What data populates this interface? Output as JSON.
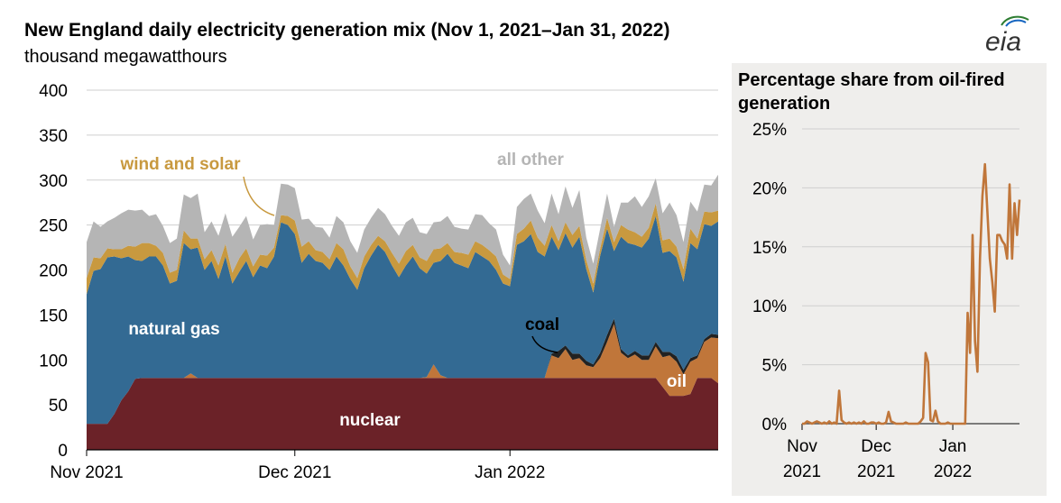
{
  "header": {
    "title": "New England daily electricity generation mix (Nov 1, 2021–Jan 31, 2022)",
    "subtitle": "thousand megawatthours",
    "logo_text": "eia"
  },
  "chart_data": [
    {
      "type": "area",
      "title": "New England daily electricity generation mix (Nov 1, 2021–Jan 31, 2022)",
      "ylabel": "thousand megawatthours",
      "ylim": [
        0,
        400
      ],
      "yticks": [
        "0",
        "50",
        "100",
        "150",
        "200",
        "250",
        "300",
        "350",
        "400"
      ],
      "xticks": [
        {
          "day": 0,
          "label": "Nov 2021"
        },
        {
          "day": 30,
          "label": "Dec 2021"
        },
        {
          "day": 61,
          "label": "Jan 2022"
        }
      ],
      "stacked": true,
      "series": [
        {
          "name": "nuclear",
          "color": "#6b2228",
          "label": "nuclear",
          "label_color": "#ffffff",
          "values": [
            29,
            29,
            29,
            29,
            40,
            55,
            65,
            79,
            80,
            80,
            80,
            80,
            80,
            80,
            80,
            80,
            80,
            80,
            80,
            80,
            80,
            80,
            80,
            80,
            80,
            80,
            80,
            80,
            80,
            80,
            80,
            80,
            80,
            80,
            80,
            80,
            80,
            80,
            80,
            80,
            80,
            80,
            80,
            80,
            80,
            80,
            80,
            80,
            80,
            80,
            80,
            80,
            80,
            80,
            80,
            80,
            80,
            80,
            80,
            80,
            80,
            80,
            80,
            80,
            80,
            80,
            80,
            80,
            80,
            80,
            80,
            80,
            80,
            80,
            80,
            80,
            80,
            80,
            80,
            80,
            80,
            80,
            80,
            70,
            60,
            60,
            60,
            62,
            80,
            80,
            80,
            74
          ]
        },
        {
          "name": "oil",
          "color": "#c0763a",
          "label": "oil",
          "label_color": "#ffffff",
          "values": [
            0,
            0,
            0,
            0,
            0,
            0,
            0,
            0,
            0,
            0,
            0,
            0,
            0,
            0,
            0,
            5,
            0,
            0,
            0,
            0,
            0,
            0,
            0,
            0,
            0,
            0,
            0,
            0,
            0,
            0,
            0,
            0,
            0,
            0,
            0,
            0,
            0,
            0,
            0,
            0,
            0,
            0,
            0,
            0,
            0,
            0,
            0,
            0,
            0,
            1,
            15,
            3,
            0,
            0,
            0,
            0,
            0,
            0,
            0,
            0,
            0,
            0,
            0,
            0,
            0,
            0,
            0,
            25,
            22,
            32,
            20,
            22,
            14,
            12,
            22,
            40,
            60,
            28,
            22,
            26,
            20,
            20,
            35,
            33,
            45,
            38,
            24,
            36,
            22,
            40,
            45,
            50
          ]
        },
        {
          "name": "coal",
          "color": "#222222",
          "label": "coal",
          "label_color": "#000000",
          "values": [
            0,
            0,
            0,
            0,
            0,
            0,
            0,
            0,
            0,
            0,
            0,
            0,
            0,
            0,
            0,
            0,
            0,
            0,
            0,
            0,
            0,
            0,
            0,
            0,
            0,
            0,
            0,
            0,
            0,
            0,
            0,
            0,
            0,
            0,
            0,
            0,
            0,
            0,
            0,
            0,
            0,
            0,
            0,
            0,
            0,
            0,
            0,
            0,
            0,
            0,
            0,
            0,
            0,
            0,
            0,
            0,
            0,
            0,
            0,
            0,
            0,
            0,
            0,
            0,
            0,
            0,
            0,
            2,
            8,
            4,
            7,
            5,
            5,
            3,
            6,
            8,
            6,
            4,
            3,
            4,
            5,
            5,
            5,
            6,
            4,
            6,
            5,
            4,
            3,
            3,
            4,
            4
          ]
        },
        {
          "name": "natural gas",
          "color": "#336a93",
          "label": "natural gas",
          "label_color": "#ffffff",
          "values": [
            144,
            170,
            172,
            185,
            175,
            158,
            150,
            132,
            130,
            135,
            135,
            125,
            105,
            108,
            150,
            138,
            145,
            120,
            130,
            110,
            135,
            105,
            118,
            130,
            112,
            125,
            122,
            135,
            173,
            170,
            160,
            128,
            138,
            130,
            128,
            120,
            135,
            125,
            110,
            98,
            122,
            136,
            148,
            140,
            125,
            112,
            125,
            135,
            122,
            115,
            113,
            127,
            138,
            128,
            125,
            122,
            140,
            135,
            130,
            120,
            105,
            102,
            148,
            152,
            160,
            140,
            135,
            130,
            112,
            125,
            118,
            130,
            102,
            80,
            108,
            118,
            75,
            125,
            125,
            118,
            120,
            130,
            140,
            110,
            112,
            110,
            98,
            128,
            118,
            128,
            120,
            126
          ]
        },
        {
          "name": "wind and solar",
          "color": "#c8993f",
          "label": "wind and solar",
          "label_color": "#c8993f",
          "values": [
            18,
            15,
            12,
            10,
            8,
            10,
            12,
            15,
            20,
            15,
            12,
            14,
            12,
            12,
            14,
            12,
            10,
            12,
            12,
            15,
            14,
            12,
            15,
            14,
            12,
            12,
            14,
            10,
            8,
            10,
            15,
            18,
            14,
            12,
            12,
            12,
            15,
            18,
            14,
            13,
            13,
            12,
            10,
            12,
            14,
            15,
            16,
            13,
            12,
            14,
            15,
            14,
            12,
            12,
            14,
            15,
            12,
            13,
            12,
            15,
            10,
            8,
            12,
            14,
            15,
            16,
            12,
            13,
            10,
            12,
            14,
            12,
            10,
            10,
            8,
            12,
            10,
            13,
            15,
            14,
            12,
            12,
            14,
            14,
            14,
            12,
            14,
            16,
            12,
            14,
            15,
            12
          ]
        },
        {
          "name": "all other",
          "color": "#b5b5b5",
          "label": "all other",
          "label_color": "#b5b5b5",
          "values": [
            40,
            40,
            35,
            30,
            35,
            40,
            40,
            40,
            37,
            30,
            35,
            30,
            33,
            35,
            40,
            45,
            50,
            30,
            32,
            33,
            34,
            40,
            35,
            36,
            30,
            33,
            35,
            25,
            35,
            35,
            36,
            30,
            25,
            26,
            27,
            24,
            30,
            30,
            28,
            28,
            30,
            30,
            31,
            30,
            30,
            31,
            32,
            30,
            28,
            30,
            30,
            30,
            30,
            28,
            27,
            28,
            30,
            33,
            30,
            30,
            22,
            15,
            30,
            33,
            30,
            30,
            25,
            35,
            30,
            40,
            30,
            40,
            25,
            22,
            22,
            27,
            17,
            25,
            30,
            40,
            33,
            35,
            28,
            30,
            40,
            35,
            30,
            30,
            30,
            30,
            30,
            40
          ]
        }
      ]
    },
    {
      "type": "line",
      "title": "Percentage share from oil-fired generation",
      "ylim": [
        0,
        25
      ],
      "yticks": [
        "0%",
        "5%",
        "10%",
        "15%",
        "20%",
        "25%"
      ],
      "xticks": [
        {
          "day": 0,
          "label": "Nov",
          "year": "2021"
        },
        {
          "day": 30,
          "label": "Dec",
          "year": "2021"
        },
        {
          "day": 61,
          "label": "Jan",
          "year": "2022"
        }
      ],
      "series": [
        {
          "name": "oil share",
          "color": "#c0763a",
          "values": [
            0,
            0,
            0.2,
            0.1,
            0,
            0.1,
            0.2,
            0.1,
            0,
            0.1,
            0,
            0.2,
            0,
            0.1,
            0,
            2.8,
            0.3,
            0.1,
            0,
            0.1,
            0,
            0.1,
            0,
            0.1,
            0,
            0.2,
            0,
            0,
            0.1,
            0.1,
            0,
            0.1,
            0,
            0,
            0.1,
            1.0,
            0.2,
            0.1,
            0,
            0,
            0,
            0,
            0.1,
            0,
            0,
            0,
            0,
            0,
            0.2,
            0.5,
            6.0,
            5.2,
            0.3,
            0.2,
            1.1,
            0.2,
            0,
            0,
            0,
            0.1,
            0,
            0,
            0,
            0,
            0,
            0,
            0,
            9.4,
            6.0,
            16.0,
            7.0,
            4.4,
            14.0,
            19.3,
            22.0,
            18.0,
            14.0,
            12.0,
            9.5,
            16.0,
            16.0,
            15.5,
            15.2,
            14.0,
            20.3,
            14.0,
            18.7,
            16.0,
            19.0
          ]
        }
      ]
    }
  ],
  "labels": {
    "panel_title": "Percentage share from oil-fired generation"
  }
}
